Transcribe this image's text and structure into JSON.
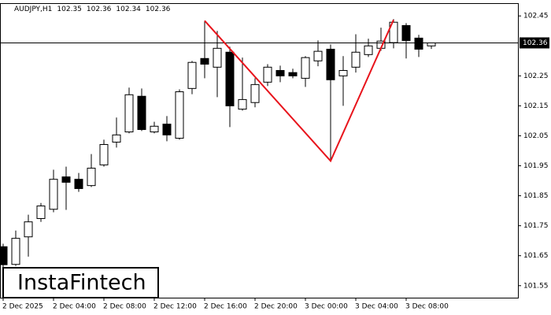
{
  "chart_data": {
    "type": "candlestick",
    "title": "AUDJPY,H1",
    "categories": [
      "2 Dec 2025",
      null,
      null,
      null,
      "2 Dec 04:00",
      null,
      null,
      null,
      "2 Dec 08:00",
      null,
      null,
      null,
      "2 Dec 12:00",
      null,
      null,
      null,
      "2 Dec 16:00",
      null,
      null,
      null,
      "2 Dec 20:00",
      null,
      null,
      null,
      "3 Dec 00:00",
      null,
      null,
      null,
      "3 Dec 04:00",
      null,
      null,
      null,
      "3 Dec 08:00",
      null,
      null
    ],
    "open": [
      101.68,
      101.621,
      101.713,
      101.774,
      101.805,
      101.913,
      101.905,
      101.884,
      101.953,
      102.029,
      102.063,
      102.182,
      102.063,
      102.089,
      102.042,
      102.208,
      102.308,
      102.279,
      102.329,
      102.139,
      102.161,
      102.229,
      102.268,
      102.261,
      102.242,
      102.3,
      102.339,
      102.25,
      102.279,
      102.321,
      102.342,
      102.361,
      102.418,
      102.376,
      102.35
    ],
    "high": [
      101.69,
      101.734,
      101.787,
      101.826,
      101.937,
      101.947,
      101.926,
      101.989,
      102.037,
      102.111,
      102.211,
      102.208,
      102.097,
      102.116,
      102.205,
      102.3,
      102.434,
      102.4,
      102.347,
      102.311,
      102.242,
      102.289,
      102.284,
      102.274,
      102.316,
      102.368,
      102.355,
      102.316,
      102.389,
      102.374,
      102.411,
      102.439,
      102.426,
      102.387,
      102.36
    ],
    "low": [
      101.61,
      101.616,
      101.647,
      101.763,
      101.795,
      101.803,
      101.863,
      101.879,
      101.947,
      102.011,
      102.058,
      102.066,
      102.058,
      102.032,
      102.037,
      102.189,
      102.242,
      102.179,
      102.079,
      102.134,
      102.145,
      102.216,
      102.229,
      102.242,
      102.213,
      102.282,
      101.966,
      102.15,
      102.261,
      102.313,
      102.334,
      102.342,
      102.308,
      102.313,
      102.34
    ],
    "close": [
      101.62,
      101.708,
      101.763,
      101.816,
      101.905,
      101.895,
      101.874,
      101.942,
      102.021,
      102.053,
      102.187,
      102.071,
      102.082,
      102.053,
      102.197,
      102.295,
      102.289,
      102.342,
      102.15,
      102.171,
      102.221,
      102.279,
      102.25,
      102.25,
      102.311,
      102.332,
      102.237,
      102.268,
      102.329,
      102.35,
      102.366,
      102.429,
      102.368,
      102.339,
      102.36
    ],
    "up_color": "#ffffff",
    "down_color": "#000000",
    "edge_color": "#000000",
    "current_price": 102.36,
    "pattern": {
      "color": "#e8141c",
      "values": [
        102.434,
        101.966,
        102.437
      ]
    },
    "ylim": [
      101.51,
      102.49
    ],
    "yticks": [
      102.45,
      102.25,
      102.15,
      102.05,
      101.95,
      101.85,
      101.75,
      101.65,
      101.55
    ],
    "grid": false,
    "watermark": "InstaFintech"
  }
}
